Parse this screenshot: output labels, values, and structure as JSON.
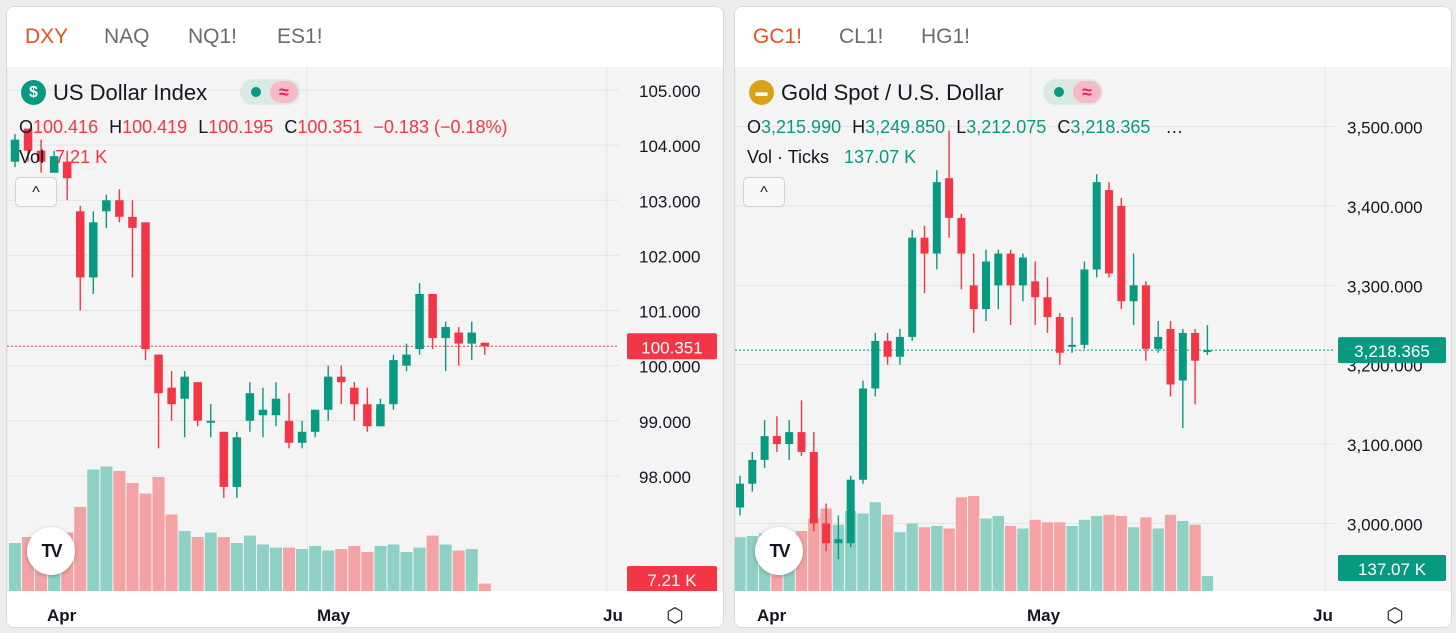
{
  "left": {
    "tabs": [
      {
        "label": "DXY",
        "active": true
      },
      {
        "label": "NAQ",
        "active": false
      },
      {
        "label": "NQ1!",
        "active": false
      },
      {
        "label": "ES1!",
        "active": false
      }
    ],
    "title": "US Dollar Index",
    "symbol_icon": "dollar-icon",
    "symbol_glyph": "$",
    "ohlc": {
      "o_label": "O",
      "o": "100.416",
      "h_label": "H",
      "h": "100.419",
      "l_label": "L",
      "l": "100.195",
      "c_label": "C",
      "c": "100.351",
      "change": "−0.183 (−0.18%)"
    },
    "vol_label": "Vol",
    "vol_value": "7.21 K",
    "price_badge": "100.351",
    "vol_badge": "7.21 K",
    "colors": {
      "up": "#089981",
      "down": "#f23645",
      "up_vol": "#8fd0c4",
      "down_vol": "#f4a3a5",
      "badge": "#f23645"
    },
    "chart_data": {
      "type": "candlestick",
      "y_ticks": [
        "105.000",
        "104.000",
        "103.000",
        "102.000",
        "101.000",
        "100.000",
        "99.000",
        "98.000"
      ],
      "ylim": [
        97.0,
        105.2
      ],
      "x_labels": [
        "Apr",
        "May",
        "Ju"
      ],
      "candles": [
        {
          "o": 103.7,
          "h": 104.2,
          "l": 103.6,
          "c": 104.1
        },
        {
          "o": 104.3,
          "h": 104.3,
          "l": 103.7,
          "c": 103.9
        },
        {
          "o": 103.9,
          "h": 104.1,
          "l": 103.5,
          "c": 103.7
        },
        {
          "o": 103.5,
          "h": 103.9,
          "l": 103.5,
          "c": 103.8
        },
        {
          "o": 103.7,
          "h": 103.9,
          "l": 103.0,
          "c": 103.4
        },
        {
          "o": 102.8,
          "h": 102.9,
          "l": 101.0,
          "c": 101.6
        },
        {
          "o": 101.6,
          "h": 102.8,
          "l": 101.3,
          "c": 102.6
        },
        {
          "o": 102.8,
          "h": 103.1,
          "l": 102.5,
          "c": 103.0
        },
        {
          "o": 103.0,
          "h": 103.2,
          "l": 102.6,
          "c": 102.7
        },
        {
          "o": 102.7,
          "h": 103.0,
          "l": 101.6,
          "c": 102.5
        },
        {
          "o": 102.6,
          "h": 102.6,
          "l": 100.1,
          "c": 100.3
        },
        {
          "o": 100.2,
          "h": 100.2,
          "l": 98.5,
          "c": 99.5
        },
        {
          "o": 99.6,
          "h": 99.9,
          "l": 99.0,
          "c": 99.3
        },
        {
          "o": 99.4,
          "h": 99.9,
          "l": 98.7,
          "c": 99.8
        },
        {
          "o": 99.7,
          "h": 99.7,
          "l": 98.9,
          "c": 99.0
        },
        {
          "o": 99.0,
          "h": 99.3,
          "l": 98.7,
          "c": 99.0
        },
        {
          "o": 98.8,
          "h": 98.8,
          "l": 97.6,
          "c": 97.8
        },
        {
          "o": 97.8,
          "h": 98.8,
          "l": 97.6,
          "c": 98.7
        },
        {
          "o": 99.0,
          "h": 99.7,
          "l": 98.8,
          "c": 99.5
        },
        {
          "o": 99.1,
          "h": 99.6,
          "l": 98.7,
          "c": 99.2
        },
        {
          "o": 99.1,
          "h": 99.7,
          "l": 98.9,
          "c": 99.4
        },
        {
          "o": 99.0,
          "h": 99.5,
          "l": 98.5,
          "c": 98.6
        },
        {
          "o": 98.6,
          "h": 99.0,
          "l": 98.5,
          "c": 98.8
        },
        {
          "o": 98.8,
          "h": 99.2,
          "l": 98.7,
          "c": 99.2
        },
        {
          "o": 99.2,
          "h": 100.0,
          "l": 99.0,
          "c": 99.8
        },
        {
          "o": 99.8,
          "h": 100.0,
          "l": 99.3,
          "c": 99.7
        },
        {
          "o": 99.6,
          "h": 99.7,
          "l": 99.0,
          "c": 99.3
        },
        {
          "o": 99.3,
          "h": 99.6,
          "l": 98.8,
          "c": 98.9
        },
        {
          "o": 98.9,
          "h": 99.4,
          "l": 98.9,
          "c": 99.3
        },
        {
          "o": 99.3,
          "h": 100.2,
          "l": 99.2,
          "c": 100.1
        },
        {
          "o": 100.0,
          "h": 100.4,
          "l": 99.9,
          "c": 100.2
        },
        {
          "o": 100.3,
          "h": 101.5,
          "l": 100.2,
          "c": 101.3
        },
        {
          "o": 101.3,
          "h": 101.3,
          "l": 100.3,
          "c": 100.5
        },
        {
          "o": 100.5,
          "h": 100.8,
          "l": 99.9,
          "c": 100.7
        },
        {
          "o": 100.6,
          "h": 100.7,
          "l": 100.0,
          "c": 100.4
        },
        {
          "o": 100.4,
          "h": 100.8,
          "l": 100.1,
          "c": 100.6
        },
        {
          "o": 100.416,
          "h": 100.419,
          "l": 100.195,
          "c": 100.351
        }
      ],
      "volume_scale_max": 10,
      "volume": [
        3.2,
        3.6,
        3.3,
        3.0,
        3.9,
        5.6,
        8.1,
        8.3,
        8.0,
        7.2,
        6.5,
        7.6,
        5.1,
        4.0,
        3.6,
        3.9,
        3.6,
        3.2,
        3.7,
        3.1,
        2.9,
        2.9,
        2.8,
        3.0,
        2.7,
        2.8,
        3.0,
        2.6,
        3.0,
        3.1,
        2.6,
        2.9,
        3.7,
        3.1,
        2.7,
        2.8,
        0.5
      ]
    }
  },
  "right": {
    "tabs": [
      {
        "label": "GC1!",
        "active": true
      },
      {
        "label": "CL1!",
        "active": false
      },
      {
        "label": "HG1!",
        "active": false
      }
    ],
    "title": "Gold Spot / U.S. Dollar",
    "symbol_icon": "gold-bars-icon",
    "symbol_glyph": "▬",
    "ohlc": {
      "o_label": "O",
      "o": "3,215.990",
      "h_label": "H",
      "h": "3,249.850",
      "l_label": "L",
      "l": "3,212.075",
      "c_label": "C",
      "c": "3,218.365",
      "more": "…"
    },
    "vol_label": "Vol · Ticks",
    "vol_value": "137.07 K",
    "price_badge": "3,218.365",
    "vol_badge": "137.07 K",
    "colors": {
      "up": "#089981",
      "down": "#f23645",
      "up_vol": "#8fd0c4",
      "down_vol": "#f4a3a5",
      "badge": "#089981"
    },
    "chart_data": {
      "type": "candlestick",
      "y_ticks": [
        "3,500.000",
        "3,400.000",
        "3,300.000",
        "3,200.000",
        "3,100.000",
        "3,000.000"
      ],
      "ylim": [
        2940,
        3560
      ],
      "x_labels": [
        "Apr",
        "May",
        "Ju"
      ],
      "candles": [
        {
          "o": 3020,
          "h": 3060,
          "l": 3010,
          "c": 3050
        },
        {
          "o": 3050,
          "h": 3090,
          "l": 3040,
          "c": 3080
        },
        {
          "o": 3080,
          "h": 3130,
          "l": 3070,
          "c": 3110
        },
        {
          "o": 3110,
          "h": 3135,
          "l": 3090,
          "c": 3100
        },
        {
          "o": 3100,
          "h": 3130,
          "l": 3080,
          "c": 3115
        },
        {
          "o": 3115,
          "h": 3155,
          "l": 3085,
          "c": 3090
        },
        {
          "o": 3090,
          "h": 3115,
          "l": 2990,
          "c": 3000
        },
        {
          "o": 3000,
          "h": 3025,
          "l": 2965,
          "c": 2975
        },
        {
          "o": 2975,
          "h": 3010,
          "l": 2955,
          "c": 2980
        },
        {
          "o": 2975,
          "h": 3060,
          "l": 2970,
          "c": 3055
        },
        {
          "o": 3055,
          "h": 3180,
          "l": 3050,
          "c": 3170
        },
        {
          "o": 3170,
          "h": 3240,
          "l": 3160,
          "c": 3230
        },
        {
          "o": 3230,
          "h": 3240,
          "l": 3200,
          "c": 3210
        },
        {
          "o": 3210,
          "h": 3245,
          "l": 3200,
          "c": 3235
        },
        {
          "o": 3235,
          "h": 3370,
          "l": 3230,
          "c": 3360
        },
        {
          "o": 3360,
          "h": 3375,
          "l": 3290,
          "c": 3340
        },
        {
          "o": 3340,
          "h": 3445,
          "l": 3320,
          "c": 3430
        },
        {
          "o": 3435,
          "h": 3495,
          "l": 3360,
          "c": 3385
        },
        {
          "o": 3385,
          "h": 3390,
          "l": 3295,
          "c": 3340
        },
        {
          "o": 3300,
          "h": 3340,
          "l": 3240,
          "c": 3270
        },
        {
          "o": 3270,
          "h": 3345,
          "l": 3255,
          "c": 3330
        },
        {
          "o": 3300,
          "h": 3345,
          "l": 3270,
          "c": 3340
        },
        {
          "o": 3340,
          "h": 3345,
          "l": 3250,
          "c": 3300
        },
        {
          "o": 3300,
          "h": 3340,
          "l": 3280,
          "c": 3335
        },
        {
          "o": 3305,
          "h": 3330,
          "l": 3250,
          "c": 3285
        },
        {
          "o": 3285,
          "h": 3310,
          "l": 3240,
          "c": 3260
        },
        {
          "o": 3260,
          "h": 3265,
          "l": 3200,
          "c": 3215
        },
        {
          "o": 3225,
          "h": 3260,
          "l": 3215,
          "c": 3225
        },
        {
          "o": 3225,
          "h": 3330,
          "l": 3220,
          "c": 3320
        },
        {
          "o": 3320,
          "h": 3440,
          "l": 3310,
          "c": 3430
        },
        {
          "o": 3420,
          "h": 3430,
          "l": 3310,
          "c": 3315
        },
        {
          "o": 3400,
          "h": 3410,
          "l": 3270,
          "c": 3280
        },
        {
          "o": 3280,
          "h": 3340,
          "l": 3250,
          "c": 3300
        },
        {
          "o": 3300,
          "h": 3305,
          "l": 3205,
          "c": 3220
        },
        {
          "o": 3220,
          "h": 3255,
          "l": 3215,
          "c": 3235
        },
        {
          "o": 3245,
          "h": 3255,
          "l": 3160,
          "c": 3175
        },
        {
          "o": 3180,
          "h": 3245,
          "l": 3120,
          "c": 3240
        },
        {
          "o": 3240,
          "h": 3245,
          "l": 3150,
          "c": 3205
        },
        {
          "o": 3215.99,
          "h": 3249.85,
          "l": 3212.075,
          "c": 3218.365
        }
      ],
      "volume_scale_max": 10,
      "volume": [
        4.3,
        4.4,
        4.6,
        4.0,
        4.5,
        4.8,
        5.8,
        6.6,
        5.3,
        6.4,
        6.2,
        7.1,
        6.1,
        4.7,
        5.4,
        5.1,
        5.2,
        5.0,
        7.5,
        7.6,
        5.8,
        6.0,
        5.2,
        5.0,
        5.7,
        5.5,
        5.5,
        5.2,
        5.7,
        6.0,
        6.1,
        6.0,
        5.1,
        5.9,
        5.0,
        6.1,
        5.6,
        5.3,
        1.2
      ]
    }
  }
}
